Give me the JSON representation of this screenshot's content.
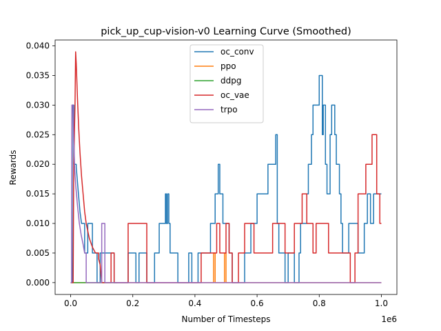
{
  "chart_data": {
    "type": "line",
    "title": "pick_up_cup-vision-v0 Learning Curve (Smoothed)",
    "xlabel": "Number of Timesteps",
    "ylabel": "Rewards",
    "x_offset_label": "1e6",
    "xlim": [
      -50000,
      1050000
    ],
    "ylim": [
      -0.002,
      0.041
    ],
    "x_ticks": [
      0,
      200000,
      400000,
      600000,
      800000,
      1000000
    ],
    "x_tick_labels": [
      "0.0",
      "0.2",
      "0.4",
      "0.6",
      "0.8",
      "1.0"
    ],
    "y_ticks": [
      0.0,
      0.005,
      0.01,
      0.015,
      0.02,
      0.025,
      0.03,
      0.035,
      0.04
    ],
    "y_tick_labels": [
      "0.000",
      "0.005",
      "0.010",
      "0.015",
      "0.020",
      "0.025",
      "0.030",
      "0.035",
      "0.040"
    ],
    "grid": false,
    "legend_position": "upper-center",
    "series": [
      {
        "name": "oc_conv",
        "color": "#1f77b4",
        "points": [
          [
            0,
            0
          ],
          [
            5000,
            0
          ],
          [
            5000,
            0.03
          ],
          [
            10000,
            0.03
          ],
          [
            10000,
            0.02
          ],
          [
            18000,
            0.02
          ],
          [
            18000,
            0.0195
          ],
          [
            25000,
            0.015
          ],
          [
            30000,
            0.012
          ],
          [
            35000,
            0.01
          ],
          [
            45000,
            0.01
          ],
          [
            45000,
            0.005
          ],
          [
            55000,
            0.005
          ],
          [
            55000,
            0.01
          ],
          [
            70000,
            0.01
          ],
          [
            70000,
            0.005
          ],
          [
            85000,
            0.005
          ],
          [
            85000,
            0
          ],
          [
            95000,
            0
          ],
          [
            95000,
            0.005
          ],
          [
            140000,
            0.005
          ],
          [
            140000,
            0
          ],
          [
            185000,
            0
          ],
          [
            185000,
            0.005
          ],
          [
            210000,
            0.005
          ],
          [
            210000,
            0
          ],
          [
            220000,
            0
          ],
          [
            220000,
            0.005
          ],
          [
            245000,
            0.005
          ],
          [
            245000,
            0
          ],
          [
            270000,
            0
          ],
          [
            270000,
            0.005
          ],
          [
            285000,
            0.005
          ],
          [
            285000,
            0.01
          ],
          [
            305000,
            0.01
          ],
          [
            305000,
            0.015
          ],
          [
            308000,
            0.015
          ],
          [
            308000,
            0.01
          ],
          [
            312000,
            0.01
          ],
          [
            312000,
            0.015
          ],
          [
            316000,
            0.015
          ],
          [
            316000,
            0.01
          ],
          [
            320000,
            0.01
          ],
          [
            320000,
            0.005
          ],
          [
            345000,
            0.005
          ],
          [
            345000,
            0
          ],
          [
            380000,
            0
          ],
          [
            380000,
            0.005
          ],
          [
            390000,
            0.005
          ],
          [
            390000,
            0
          ],
          [
            410000,
            0
          ],
          [
            410000,
            0.005
          ],
          [
            450000,
            0.005
          ],
          [
            450000,
            0.01
          ],
          [
            465000,
            0.01
          ],
          [
            465000,
            0.015
          ],
          [
            475000,
            0.015
          ],
          [
            475000,
            0.02
          ],
          [
            480000,
            0.02
          ],
          [
            480000,
            0.015
          ],
          [
            490000,
            0.015
          ],
          [
            490000,
            0.01
          ],
          [
            510000,
            0.01
          ],
          [
            510000,
            0.005
          ],
          [
            520000,
            0.005
          ],
          [
            520000,
            0
          ],
          [
            560000,
            0
          ],
          [
            560000,
            0.005
          ],
          [
            580000,
            0.005
          ],
          [
            580000,
            0.01
          ],
          [
            600000,
            0.01
          ],
          [
            600000,
            0.015
          ],
          [
            635000,
            0.015
          ],
          [
            635000,
            0.02
          ],
          [
            660000,
            0.02
          ],
          [
            660000,
            0.025
          ],
          [
            665000,
            0.025
          ],
          [
            665000,
            0.01
          ],
          [
            670000,
            0.01
          ],
          [
            670000,
            0.005
          ],
          [
            690000,
            0.005
          ],
          [
            690000,
            0
          ],
          [
            700000,
            0
          ],
          [
            700000,
            0.005
          ],
          [
            720000,
            0.005
          ],
          [
            720000,
            0
          ],
          [
            735000,
            0
          ],
          [
            735000,
            0.005
          ],
          [
            740000,
            0.005
          ],
          [
            740000,
            0.01
          ],
          [
            760000,
            0.01
          ],
          [
            760000,
            0.015
          ],
          [
            765000,
            0.015
          ],
          [
            765000,
            0.02
          ],
          [
            775000,
            0.02
          ],
          [
            775000,
            0.025
          ],
          [
            780000,
            0.025
          ],
          [
            780000,
            0.03
          ],
          [
            800000,
            0.03
          ],
          [
            800000,
            0.035
          ],
          [
            810000,
            0.035
          ],
          [
            810000,
            0.025
          ],
          [
            813000,
            0.025
          ],
          [
            813000,
            0.03
          ],
          [
            820000,
            0.03
          ],
          [
            820000,
            0.02
          ],
          [
            825000,
            0.02
          ],
          [
            825000,
            0.015
          ],
          [
            835000,
            0.015
          ],
          [
            835000,
            0.025
          ],
          [
            840000,
            0.025
          ],
          [
            840000,
            0.03
          ],
          [
            850000,
            0.03
          ],
          [
            850000,
            0.025
          ],
          [
            855000,
            0.025
          ],
          [
            855000,
            0.02
          ],
          [
            865000,
            0.02
          ],
          [
            865000,
            0.015
          ],
          [
            870000,
            0.015
          ],
          [
            870000,
            0.01
          ],
          [
            875000,
            0.01
          ],
          [
            875000,
            0.005
          ],
          [
            895000,
            0.005
          ],
          [
            895000,
            0.01
          ],
          [
            925000,
            0.01
          ],
          [
            925000,
            0.005
          ],
          [
            945000,
            0.005
          ],
          [
            945000,
            0.01
          ],
          [
            955000,
            0.01
          ],
          [
            955000,
            0.015
          ],
          [
            965000,
            0.015
          ],
          [
            965000,
            0.01
          ],
          [
            975000,
            0.01
          ],
          [
            975000,
            0.015
          ],
          [
            1000000,
            0.015
          ]
        ]
      },
      {
        "name": "ppo",
        "color": "#ff7f0e",
        "points": [
          [
            0,
            0
          ],
          [
            460000,
            0
          ],
          [
            460000,
            0.005
          ],
          [
            465000,
            0.005
          ],
          [
            465000,
            0
          ],
          [
            495000,
            0
          ],
          [
            495000,
            0.005
          ],
          [
            500000,
            0.005
          ],
          [
            500000,
            0
          ],
          [
            1000000,
            0
          ]
        ]
      },
      {
        "name": "ddpg",
        "color": "#2ca02c",
        "points": [
          [
            0,
            0
          ],
          [
            150000,
            0
          ]
        ]
      },
      {
        "name": "oc_vae",
        "color": "#d62728",
        "points": [
          [
            0,
            0
          ],
          [
            8000,
            0
          ],
          [
            10000,
            0.02
          ],
          [
            14000,
            0.03
          ],
          [
            16000,
            0.039
          ],
          [
            18000,
            0.037
          ],
          [
            22000,
            0.031
          ],
          [
            26000,
            0.026
          ],
          [
            30000,
            0.022
          ],
          [
            35000,
            0.018
          ],
          [
            40000,
            0.015
          ],
          [
            45000,
            0.012
          ],
          [
            50000,
            0.01
          ],
          [
            60000,
            0.0075
          ],
          [
            70000,
            0.006
          ],
          [
            80000,
            0.005
          ],
          [
            90000,
            0.005
          ],
          [
            90000,
            0.004
          ],
          [
            95000,
            0.003
          ],
          [
            100000,
            0.0
          ],
          [
            130000,
            0
          ],
          [
            130000,
            0.005
          ],
          [
            140000,
            0.005
          ],
          [
            140000,
            0
          ],
          [
            185000,
            0
          ],
          [
            185000,
            0.01
          ],
          [
            245000,
            0.01
          ],
          [
            245000,
            0
          ],
          [
            420000,
            0
          ],
          [
            420000,
            0.005
          ],
          [
            470000,
            0.005
          ],
          [
            470000,
            0.01
          ],
          [
            480000,
            0.01
          ],
          [
            480000,
            0.005
          ],
          [
            500000,
            0.005
          ],
          [
            500000,
            0.01
          ],
          [
            510000,
            0.01
          ],
          [
            510000,
            0.005
          ],
          [
            520000,
            0.005
          ],
          [
            520000,
            0
          ],
          [
            540000,
            0
          ],
          [
            540000,
            0.005
          ],
          [
            560000,
            0.005
          ],
          [
            560000,
            0.01
          ],
          [
            590000,
            0.01
          ],
          [
            590000,
            0.005
          ],
          [
            650000,
            0.005
          ],
          [
            650000,
            0.01
          ],
          [
            690000,
            0.01
          ],
          [
            690000,
            0.005
          ],
          [
            720000,
            0.005
          ],
          [
            720000,
            0.01
          ],
          [
            745000,
            0.01
          ],
          [
            745000,
            0.015
          ],
          [
            760000,
            0.015
          ],
          [
            760000,
            0.01
          ],
          [
            780000,
            0.01
          ],
          [
            780000,
            0.005
          ],
          [
            790000,
            0.005
          ],
          [
            790000,
            0.01
          ],
          [
            830000,
            0.01
          ],
          [
            830000,
            0.005
          ],
          [
            900000,
            0.005
          ],
          [
            900000,
            0
          ],
          [
            915000,
            0
          ],
          [
            915000,
            0.005
          ],
          [
            925000,
            0.005
          ],
          [
            925000,
            0.015
          ],
          [
            950000,
            0.015
          ],
          [
            950000,
            0.02
          ],
          [
            970000,
            0.02
          ],
          [
            970000,
            0.025
          ],
          [
            985000,
            0.025
          ],
          [
            985000,
            0.015
          ],
          [
            995000,
            0.015
          ],
          [
            995000,
            0.01
          ],
          [
            1000000,
            0.01
          ]
        ]
      },
      {
        "name": "trpo",
        "color": "#9467bd",
        "points": [
          [
            0,
            0
          ],
          [
            3000,
            0
          ],
          [
            4000,
            0.03
          ],
          [
            8000,
            0.03
          ],
          [
            10000,
            0.024
          ],
          [
            13000,
            0.019
          ],
          [
            17000,
            0.016
          ],
          [
            22000,
            0.013
          ],
          [
            28000,
            0.01
          ],
          [
            34000,
            0.008
          ],
          [
            40000,
            0.0065
          ],
          [
            45000,
            0.005
          ],
          [
            50000,
            0.005
          ],
          [
            50000,
            0
          ],
          [
            100000,
            0
          ],
          [
            100000,
            0.01
          ],
          [
            110000,
            0.01
          ],
          [
            110000,
            0
          ],
          [
            1000000,
            0
          ]
        ]
      }
    ]
  }
}
